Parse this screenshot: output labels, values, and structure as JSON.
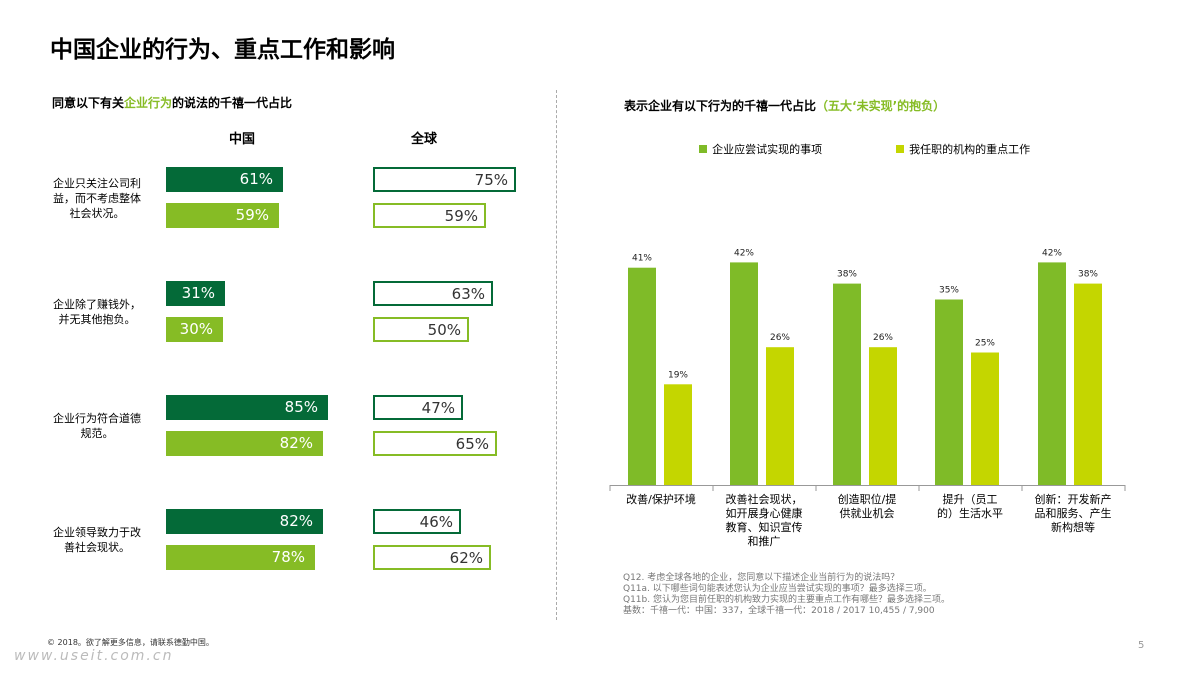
{
  "title": "中国企业的行为、重点工作和影响",
  "left": {
    "subtitle_pre": "同意以下有关",
    "subtitle_hl": "企业行为",
    "subtitle_post": "的说法的千禧一代占比",
    "col_china": "中国",
    "col_global": "全球"
  },
  "right": {
    "subtitle_pre": "表示企业有以下行为的千禧一代占比",
    "subtitle_hl": "（五大‘未实现’的抱负）"
  },
  "colors": {
    "dark_green": "#046a38",
    "green": "#86bc25",
    "lime": "#c4d600",
    "bar_green": "#7fbb28"
  },
  "chart_data": [
    {
      "type": "bar",
      "orientation": "horizontal",
      "categories": [
        "企业只关注公司利益，而不考虑整体社会状况。",
        "企业除了赚钱外，并无其他抱负。",
        "企业行为符合道德规范。",
        "企业领导致力于改善社会现状。"
      ],
      "groups": [
        "中国",
        "全球"
      ],
      "xlim": [
        0,
        100
      ],
      "series": [
        {
          "group": "中国",
          "values": [
            61,
            31,
            85,
            82
          ],
          "labels": [
            "61%",
            "31%",
            "85%",
            "82%"
          ]
        },
        {
          "group": "中国",
          "values": [
            59,
            30,
            82,
            78
          ],
          "labels": [
            "59%",
            "30%",
            "82%",
            "78%"
          ]
        },
        {
          "group": "全球",
          "values": [
            75,
            63,
            47,
            46
          ],
          "labels": [
            "75%",
            "63%",
            "47%",
            "46%"
          ]
        },
        {
          "group": "全球",
          "values": [
            59,
            50,
            65,
            62
          ],
          "labels": [
            "59%",
            "50%",
            "65%",
            "62%"
          ]
        }
      ]
    },
    {
      "type": "bar",
      "categories": [
        "改善/保护环境",
        "改善社会现状，如开展身心健康教育、知识宣传和推广",
        "创造职位/提供就业机会",
        "提升（员工的）生活水平",
        "创新：开发新产品和服务、产生新构想等"
      ],
      "category_lines": [
        [
          "改善/保护环境"
        ],
        [
          "改善社会现状，",
          "如开展身心健康",
          "教育、知识宣传",
          "和推广"
        ],
        [
          "创造职位/提",
          "供就业机会"
        ],
        [
          "提升（员工",
          "的）生活水平"
        ],
        [
          "创新：开发新产",
          "品和服务、产生",
          "新构想等"
        ]
      ],
      "ylim": [
        0,
        48
      ],
      "legend": "top",
      "series": [
        {
          "name": "企业应尝试实现的事项",
          "values": [
            41,
            42,
            38,
            35,
            42
          ],
          "labels": [
            "41%",
            "42%",
            "38%",
            "35%",
            "42%"
          ]
        },
        {
          "name": "我任职的机构的重点工作",
          "values": [
            19,
            26,
            26,
            25,
            38
          ],
          "labels": [
            "19%",
            "26%",
            "26%",
            "25%",
            "38%"
          ]
        }
      ]
    }
  ],
  "left_row_label_lines": [
    [
      "企业只关注公司利",
      "益，而不考虑整体",
      "社会状况。"
    ],
    [
      "企业除了赚钱外，",
      "并无其他抱负。"
    ],
    [
      "企业行为符合道德",
      "规范。"
    ],
    [
      "企业领导致力于改",
      "善社会现状。"
    ]
  ],
  "footnotes": [
    "Q12. 考虑全球各地的企业，您同意以下描述企业当前行为的说法吗？",
    "Q11a. 以下哪些词句能表述您认为企业应当尝试实现的事项？最多选择三项。",
    "Q11b. 您认为您目前任职的机构致力实现的主要重点工作有哪些？最多选择三项。",
    "基数：千禧一代：中国：337，全球千禧一代：2018 / 2017 10,455 / 7,900"
  ],
  "copyright": "© 2018。欲了解更多信息，请联系德勤中国。",
  "watermark": "www.useit.com.cn",
  "page_number": "5"
}
